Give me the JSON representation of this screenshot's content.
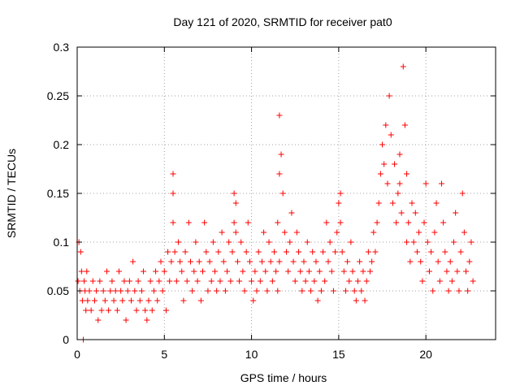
{
  "chart_data": {
    "type": "scatter",
    "title": "Day 121 of 2020, SRMTID for receiver pat0",
    "xlabel": "GPS time / hours",
    "ylabel": "SRMTID / TECUs",
    "xlim": [
      0,
      24
    ],
    "ylim": [
      0,
      0.3
    ],
    "xticks": [
      0,
      5,
      10,
      15,
      20
    ],
    "xtick_labels": [
      "0",
      "5",
      "10",
      "15",
      "20"
    ],
    "yticks": [
      0,
      0.05,
      0.1,
      0.15,
      0.2,
      0.25,
      0.3
    ],
    "ytick_labels": [
      "0",
      "0.05",
      "0.1",
      "0.15",
      "0.2",
      "0.25",
      "0.3"
    ],
    "grid": true,
    "marker": "+",
    "color": "#ff0000",
    "series": [
      {
        "name": "SRMTID",
        "x": [
          0.05,
          0.1,
          0.15,
          0.2,
          0.25,
          0.3,
          0.35,
          0.4,
          0.45,
          0.5,
          0.55,
          0.6,
          0.7,
          0.8,
          0.9,
          1.0,
          1.1,
          1.2,
          1.3,
          1.4,
          1.5,
          1.6,
          1.7,
          1.8,
          1.9,
          2.0,
          2.1,
          2.2,
          2.3,
          2.4,
          2.5,
          2.6,
          2.7,
          2.8,
          2.9,
          3.0,
          3.1,
          3.2,
          3.3,
          3.4,
          3.5,
          3.6,
          3.7,
          3.8,
          3.9,
          4.0,
          4.1,
          4.2,
          4.3,
          4.4,
          4.5,
          4.6,
          4.7,
          4.8,
          4.9,
          5.0,
          5.1,
          5.2,
          5.3,
          5.4,
          5.5,
          5.5,
          5.5,
          5.6,
          5.7,
          5.8,
          5.9,
          6.0,
          6.1,
          6.2,
          6.3,
          6.4,
          6.5,
          6.6,
          6.7,
          6.8,
          6.9,
          7.0,
          7.1,
          7.2,
          7.3,
          7.4,
          7.5,
          7.6,
          7.7,
          7.8,
          7.9,
          8.0,
          8.1,
          8.2,
          8.3,
          8.4,
          8.5,
          8.6,
          8.7,
          8.8,
          8.9,
          9.0,
          9.0,
          9.1,
          9.1,
          9.2,
          9.3,
          9.4,
          9.5,
          9.6,
          9.7,
          9.8,
          9.9,
          10.0,
          10.1,
          10.2,
          10.3,
          10.4,
          10.5,
          10.6,
          10.7,
          10.8,
          10.9,
          11.0,
          11.1,
          11.2,
          11.3,
          11.4,
          11.5,
          11.5,
          11.6,
          11.6,
          11.6,
          11.7,
          11.8,
          11.9,
          12.0,
          12.1,
          12.2,
          12.3,
          12.4,
          12.5,
          12.6,
          12.7,
          12.8,
          12.9,
          13.0,
          13.1,
          13.2,
          13.3,
          13.4,
          13.5,
          13.6,
          13.7,
          13.8,
          13.9,
          14.0,
          14.1,
          14.2,
          14.3,
          14.4,
          14.5,
          14.6,
          14.7,
          14.8,
          14.9,
          15.0,
          15.1,
          15.1,
          15.2,
          15.3,
          15.4,
          15.5,
          15.6,
          15.7,
          15.8,
          15.9,
          16.0,
          16.1,
          16.2,
          16.3,
          16.4,
          16.5,
          16.6,
          16.7,
          16.8,
          16.9,
          17.0,
          17.1,
          17.2,
          17.3,
          17.4,
          17.5,
          17.6,
          17.7,
          17.8,
          17.9,
          18.0,
          18.1,
          18.2,
          18.3,
          18.4,
          18.5,
          18.5,
          18.6,
          18.7,
          18.8,
          18.9,
          18.9,
          19.0,
          19.1,
          19.2,
          19.3,
          19.4,
          19.5,
          19.6,
          19.7,
          19.8,
          19.9,
          20.0,
          20.1,
          20.2,
          20.3,
          20.4,
          20.5,
          20.6,
          20.7,
          20.8,
          20.9,
          21.0,
          21.1,
          21.2,
          21.3,
          21.4,
          21.5,
          21.6,
          21.7,
          21.8,
          21.9,
          22.0,
          22.1,
          22.2,
          22.3,
          22.4,
          22.5,
          22.6,
          22.7
        ],
        "y": [
          0.06,
          0.1,
          0.05,
          0.09,
          0.07,
          0.04,
          0.0,
          0.06,
          0.05,
          0.03,
          0.07,
          0.04,
          0.05,
          0.03,
          0.06,
          0.04,
          0.05,
          0.02,
          0.06,
          0.03,
          0.05,
          0.04,
          0.07,
          0.03,
          0.05,
          0.06,
          0.04,
          0.05,
          0.03,
          0.07,
          0.05,
          0.04,
          0.06,
          0.02,
          0.05,
          0.06,
          0.04,
          0.08,
          0.05,
          0.03,
          0.06,
          0.04,
          0.05,
          0.07,
          0.03,
          0.02,
          0.04,
          0.06,
          0.03,
          0.05,
          0.07,
          0.04,
          0.06,
          0.08,
          0.05,
          0.07,
          0.03,
          0.09,
          0.06,
          0.08,
          0.15,
          0.17,
          0.12,
          0.09,
          0.06,
          0.1,
          0.08,
          0.07,
          0.04,
          0.09,
          0.06,
          0.12,
          0.08,
          0.05,
          0.07,
          0.1,
          0.06,
          0.08,
          0.04,
          0.07,
          0.12,
          0.09,
          0.05,
          0.08,
          0.06,
          0.1,
          0.07,
          0.05,
          0.09,
          0.06,
          0.11,
          0.08,
          0.05,
          0.07,
          0.1,
          0.06,
          0.09,
          0.15,
          0.12,
          0.14,
          0.11,
          0.08,
          0.06,
          0.1,
          0.07,
          0.05,
          0.09,
          0.12,
          0.08,
          0.06,
          0.04,
          0.07,
          0.05,
          0.09,
          0.06,
          0.08,
          0.11,
          0.07,
          0.05,
          0.1,
          0.08,
          0.06,
          0.09,
          0.07,
          0.05,
          0.12,
          0.08,
          0.17,
          0.23,
          0.19,
          0.15,
          0.11,
          0.09,
          0.07,
          0.1,
          0.13,
          0.08,
          0.06,
          0.11,
          0.09,
          0.07,
          0.05,
          0.08,
          0.06,
          0.1,
          0.07,
          0.05,
          0.09,
          0.06,
          0.08,
          0.04,
          0.07,
          0.05,
          0.09,
          0.06,
          0.12,
          0.08,
          0.1,
          0.07,
          0.05,
          0.09,
          0.11,
          0.14,
          0.15,
          0.12,
          0.09,
          0.07,
          0.05,
          0.08,
          0.06,
          0.1,
          0.07,
          0.05,
          0.04,
          0.06,
          0.08,
          0.05,
          0.07,
          0.04,
          0.06,
          0.09,
          0.07,
          0.08,
          0.11,
          0.09,
          0.12,
          0.14,
          0.17,
          0.2,
          0.18,
          0.22,
          0.16,
          0.25,
          0.21,
          0.14,
          0.18,
          0.12,
          0.15,
          0.19,
          0.16,
          0.13,
          0.28,
          0.22,
          0.1,
          0.17,
          0.12,
          0.08,
          0.14,
          0.1,
          0.13,
          0.09,
          0.11,
          0.08,
          0.06,
          0.12,
          0.16,
          0.1,
          0.07,
          0.09,
          0.05,
          0.11,
          0.14,
          0.08,
          0.06,
          0.16,
          0.12,
          0.09,
          0.07,
          0.05,
          0.08,
          0.06,
          0.1,
          0.13,
          0.07,
          0.05,
          0.09,
          0.15,
          0.11,
          0.07,
          0.05,
          0.08,
          0.1,
          0.06
        ]
      }
    ]
  }
}
